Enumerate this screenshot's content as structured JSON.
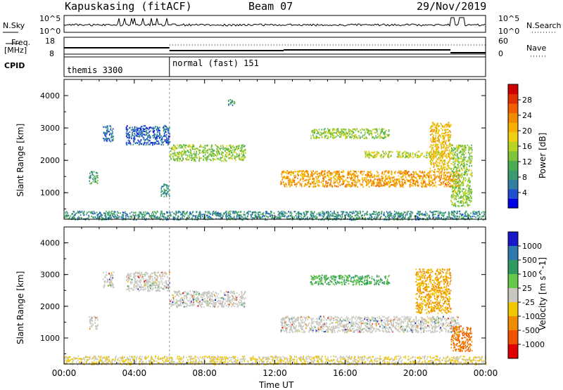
{
  "header": {
    "station": "Kapuskasing (fitACF)",
    "beam": "Beam 07",
    "date": "29/Nov/2019"
  },
  "status_panels": {
    "nsky_label": "N.Sky",
    "nsky_ticks": [
      "10^5",
      "10^0"
    ],
    "nsearch_label": "N.Search",
    "nsearch_ticks": [
      "10^5",
      "10^0"
    ],
    "freq_label": "Freq.",
    "freq_unit": "[MHz]",
    "freq_ticks": [
      "18",
      "8"
    ],
    "nave_label": "Nave",
    "nave_ticks": [
      "60",
      "0"
    ],
    "cpid_label": "CPID",
    "cpid_segments": [
      {
        "name": "themis 3300",
        "start_hour": 0,
        "end_hour": 6
      },
      {
        "name": "normal (fast) 151",
        "start_hour": 6,
        "end_hour": 24
      }
    ]
  },
  "chart_data": [
    {
      "type": "heatmap",
      "panel": "power",
      "ylabel": "Slant Range [km]",
      "ylim": [
        180,
        4500
      ],
      "yticks": [
        1000,
        2000,
        3000,
        4000
      ],
      "colorbar_label": "Power [dB]",
      "colorbar_ticks": [
        4,
        8,
        12,
        16,
        20,
        24,
        28
      ],
      "colorbar_range": [
        0,
        32
      ],
      "colorbar_colors": [
        "#0000e6",
        "#2050d0",
        "#2e7fa0",
        "#3a9a70",
        "#4aae50",
        "#7cc43a",
        "#b8d422",
        "#f0d010",
        "#f5b000",
        "#f08c00",
        "#f06000",
        "#e03000",
        "#d00000"
      ],
      "regions": [
        {
          "name": "near-range scatter",
          "t0": 0.0,
          "t1": 24.0,
          "r0": 180,
          "r1": 450,
          "level": 8
        },
        {
          "name": "patch 01:30",
          "t0": 1.4,
          "t1": 1.9,
          "r0": 1300,
          "r1": 1700,
          "level": 10
        },
        {
          "name": "patch 02:30",
          "t0": 2.2,
          "t1": 2.8,
          "r0": 2600,
          "r1": 3100,
          "level": 6
        },
        {
          "name": "arc 04:00-06:00",
          "t0": 3.5,
          "t1": 6.0,
          "r0": 2500,
          "r1": 3100,
          "level": 5
        },
        {
          "name": "patch 06:00 low",
          "t0": 5.5,
          "t1": 6.0,
          "r0": 900,
          "r1": 1300,
          "level": 8
        },
        {
          "name": "band 06:00-10:30",
          "t0": 6.0,
          "t1": 10.3,
          "r0": 2000,
          "r1": 2500,
          "level": 14
        },
        {
          "name": "patch 09:30",
          "t0": 9.3,
          "t1": 9.7,
          "r0": 3700,
          "r1": 3900,
          "level": 8
        },
        {
          "name": "main band 12:30-22:30",
          "t0": 12.3,
          "t1": 22.5,
          "r0": 1200,
          "r1": 1700,
          "level": 22
        },
        {
          "name": "band 14:00-18:00",
          "t0": 14.0,
          "t1": 18.5,
          "r0": 2700,
          "r1": 3000,
          "level": 14
        },
        {
          "name": "band 17:00-22:00",
          "t0": 17.0,
          "t1": 21.5,
          "r0": 2100,
          "r1": 2300,
          "level": 16
        },
        {
          "name": "spike 21:00-22:00",
          "t0": 20.8,
          "t1": 22.0,
          "r0": 1700,
          "r1": 3200,
          "level": 20
        },
        {
          "name": "tail 22:00-23:00",
          "t0": 22.0,
          "t1": 23.2,
          "r0": 600,
          "r1": 2500,
          "level": 14
        }
      ]
    },
    {
      "type": "heatmap",
      "panel": "velocity",
      "xlabel": "Time UT",
      "xticks": [
        "00:00",
        "04:00",
        "08:00",
        "12:00",
        "16:00",
        "20:00",
        "00:00"
      ],
      "xlim": [
        0,
        24
      ],
      "ylabel": "Slant Range [km]",
      "ylim": [
        180,
        4500
      ],
      "yticks": [
        1000,
        2000,
        3000,
        4000
      ],
      "colorbar_label": "Velocity [m s^-1]",
      "colorbar_ticks": [
        "1000",
        "500",
        "100",
        "25",
        "-25",
        "-100",
        "-500",
        "-1000"
      ],
      "colorbar_colors": [
        "#1818c8",
        "#2f78b0",
        "#2e9a60",
        "#66c84a",
        "#c8c8c0",
        "#f0c800",
        "#f08c00",
        "#f05000",
        "#e00000"
      ],
      "regions": [
        {
          "name": "near-range scatter",
          "t0": 0.0,
          "t1": 24.0,
          "r0": 180,
          "r1": 450,
          "velocity": -25
        },
        {
          "name": "patch 01:30",
          "t0": 1.4,
          "t1": 1.9,
          "r0": 1300,
          "r1": 1700,
          "velocity": 0
        },
        {
          "name": "patch 02:30",
          "t0": 2.2,
          "t1": 2.8,
          "r0": 2600,
          "r1": 3100,
          "velocity": 0
        },
        {
          "name": "arc 04:00-06:00",
          "t0": 3.5,
          "t1": 6.0,
          "r0": 2500,
          "r1": 3100,
          "velocity": 0
        },
        {
          "name": "band 06:00-10:30",
          "t0": 6.0,
          "t1": 10.3,
          "r0": 2000,
          "r1": 2500,
          "velocity": 0
        },
        {
          "name": "main band 12:30-22:30",
          "t0": 12.3,
          "t1": 22.5,
          "r0": 1200,
          "r1": 1700,
          "velocity": 0
        },
        {
          "name": "band 14:00-18:00",
          "t0": 14.0,
          "t1": 18.5,
          "r0": 2700,
          "r1": 3000,
          "velocity": 100
        },
        {
          "name": "patches 20:00-22:00",
          "t0": 20.0,
          "t1": 22.0,
          "r0": 1800,
          "r1": 3200,
          "velocity": -100
        },
        {
          "name": "tail 22:00-23:00",
          "t0": 22.0,
          "t1": 23.2,
          "r0": 600,
          "r1": 1400,
          "velocity": -500
        }
      ]
    }
  ]
}
